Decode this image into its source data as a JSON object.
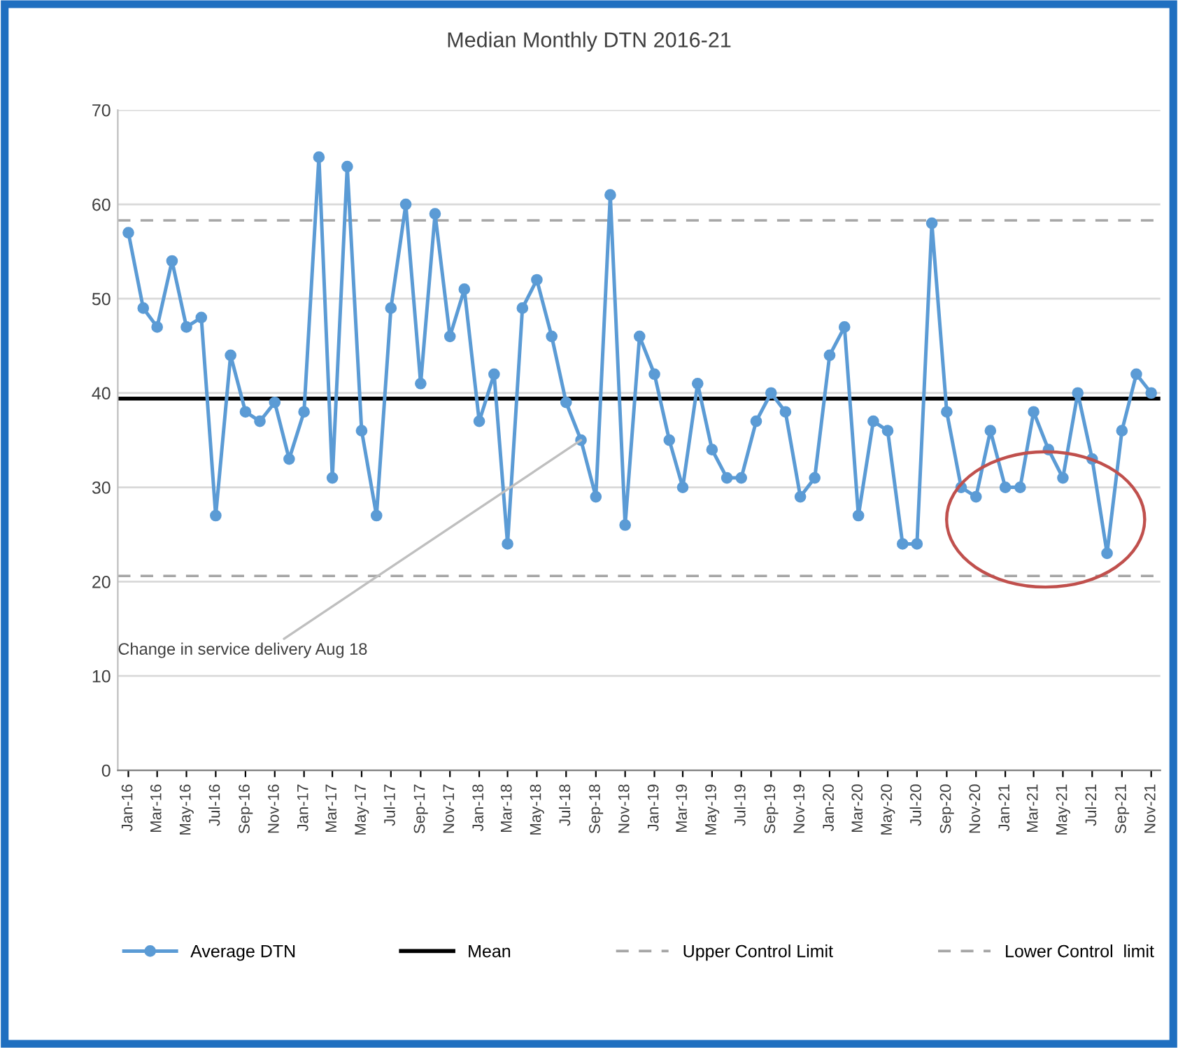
{
  "chart_data": {
    "type": "line",
    "title": "Median Monthly DTN 2016-21",
    "x": [
      "2016-01",
      "2016-02",
      "2016-03",
      "2016-04",
      "2016-05",
      "2016-06",
      "2016-07",
      "2016-08",
      "2016-09",
      "2016-10",
      "2016-11",
      "2016-12",
      "2017-01",
      "2017-02",
      "2017-03",
      "2017-04",
      "2017-05",
      "2017-06",
      "2017-07",
      "2017-08",
      "2017-09",
      "2017-10",
      "2017-11",
      "2017-12",
      "2018-01",
      "2018-02",
      "2018-03",
      "2018-04",
      "2018-05",
      "2018-06",
      "2018-07",
      "2018-08",
      "2018-09",
      "2018-10",
      "2018-11",
      "2018-12",
      "2019-01",
      "2019-02",
      "2019-03",
      "2019-04",
      "2019-05",
      "2019-06",
      "2019-07",
      "2019-08",
      "2019-09",
      "2019-10",
      "2019-11",
      "2019-12",
      "2020-01",
      "2020-02",
      "2020-03",
      "2020-04",
      "2020-05",
      "2020-06",
      "2020-07",
      "2020-08",
      "2020-09",
      "2020-10",
      "2020-11",
      "2020-12",
      "2021-01",
      "2021-02",
      "2021-03",
      "2021-04",
      "2021-05",
      "2021-06",
      "2021-07",
      "2021-08",
      "2021-09",
      "2021-10",
      "2021-11"
    ],
    "series": [
      {
        "name": "Average DTN",
        "color": "#5b9bd5",
        "values": [
          57,
          49,
          47,
          54,
          47,
          48,
          27,
          44,
          38,
          37,
          39,
          33,
          38,
          65,
          31,
          64,
          36,
          27,
          49,
          60,
          41,
          59,
          46,
          51,
          37,
          42,
          24,
          49,
          52,
          46,
          39,
          35,
          29,
          61,
          26,
          46,
          42,
          35,
          30,
          41,
          34,
          31,
          31,
          37,
          40,
          38,
          29,
          31,
          44,
          47,
          27,
          37,
          36,
          24,
          24,
          58,
          38,
          30,
          29,
          36,
          30,
          30,
          38,
          34,
          31,
          40,
          33,
          23,
          36,
          42,
          40
        ]
      }
    ],
    "marker": "circle",
    "line_style": "solid",
    "xlim": [
      "2015-12-10",
      "2021-11-20"
    ],
    "xticks": [
      {
        "value": "2016-01",
        "label": "Jan-16"
      },
      {
        "value": "2016-03",
        "label": "Mar-16"
      },
      {
        "value": "2016-05",
        "label": "May-16"
      },
      {
        "value": "2016-07",
        "label": "Jul-16"
      },
      {
        "value": "2016-09",
        "label": "Sep-16"
      },
      {
        "value": "2016-11",
        "label": "Nov-16"
      },
      {
        "value": "2017-01",
        "label": "Jan-17"
      },
      {
        "value": "2017-03",
        "label": "Mar-17"
      },
      {
        "value": "2017-05",
        "label": "May-17"
      },
      {
        "value": "2017-07",
        "label": "Jul-17"
      },
      {
        "value": "2017-09",
        "label": "Sep-17"
      },
      {
        "value": "2017-11",
        "label": "Nov-17"
      },
      {
        "value": "2018-01",
        "label": "Jan-18"
      },
      {
        "value": "2018-03",
        "label": "Mar-18"
      },
      {
        "value": "2018-05",
        "label": "May-18"
      },
      {
        "value": "2018-07",
        "label": "Jul-18"
      },
      {
        "value": "2018-09",
        "label": "Sep-18"
      },
      {
        "value": "2018-11",
        "label": "Nov-18"
      },
      {
        "value": "2019-01",
        "label": "Jan-19"
      },
      {
        "value": "2019-03",
        "label": "Mar-19"
      },
      {
        "value": "2019-05",
        "label": "May-19"
      },
      {
        "value": "2019-07",
        "label": "Jul-19"
      },
      {
        "value": "2019-09",
        "label": "Sep-19"
      },
      {
        "value": "2019-11",
        "label": "Nov-19"
      },
      {
        "value": "2020-01",
        "label": "Jan-20"
      },
      {
        "value": "2020-03",
        "label": "Mar-20"
      },
      {
        "value": "2020-05",
        "label": "May-20"
      },
      {
        "value": "2020-07",
        "label": "Jul-20"
      },
      {
        "value": "2020-09",
        "label": "Sep-20"
      },
      {
        "value": "2020-11",
        "label": "Nov-20"
      },
      {
        "value": "2021-01",
        "label": "Jan-21"
      },
      {
        "value": "2021-03",
        "label": "Mar-21"
      },
      {
        "value": "2021-05",
        "label": "May-21"
      },
      {
        "value": "2021-07",
        "label": "Jul-21"
      },
      {
        "value": "2021-09",
        "label": "Sep-21"
      },
      {
        "value": "2021-11",
        "label": "Nov-21"
      }
    ],
    "ylim": [
      0,
      70
    ],
    "yticks": [
      0,
      10,
      20,
      30,
      40,
      50,
      60,
      70
    ],
    "grid": "y",
    "legend": "bottom",
    "ref_lines": [
      {
        "axis": "y",
        "value": 39.4,
        "label": "Mean",
        "color": "#000000",
        "line_style": "solid"
      },
      {
        "axis": "y",
        "value": 58.3,
        "label": "Upper Control Limit",
        "color": "#a6a6a6",
        "line_style": "dashed"
      },
      {
        "axis": "y",
        "value": 20.6,
        "label": "Lower Control  limit",
        "color": "#a6a6a6",
        "line_style": "dashed"
      }
    ],
    "annotations": [
      {
        "text": "Change in service delivery Aug 18",
        "x": "2018-08",
        "y": 35
      }
    ]
  }
}
